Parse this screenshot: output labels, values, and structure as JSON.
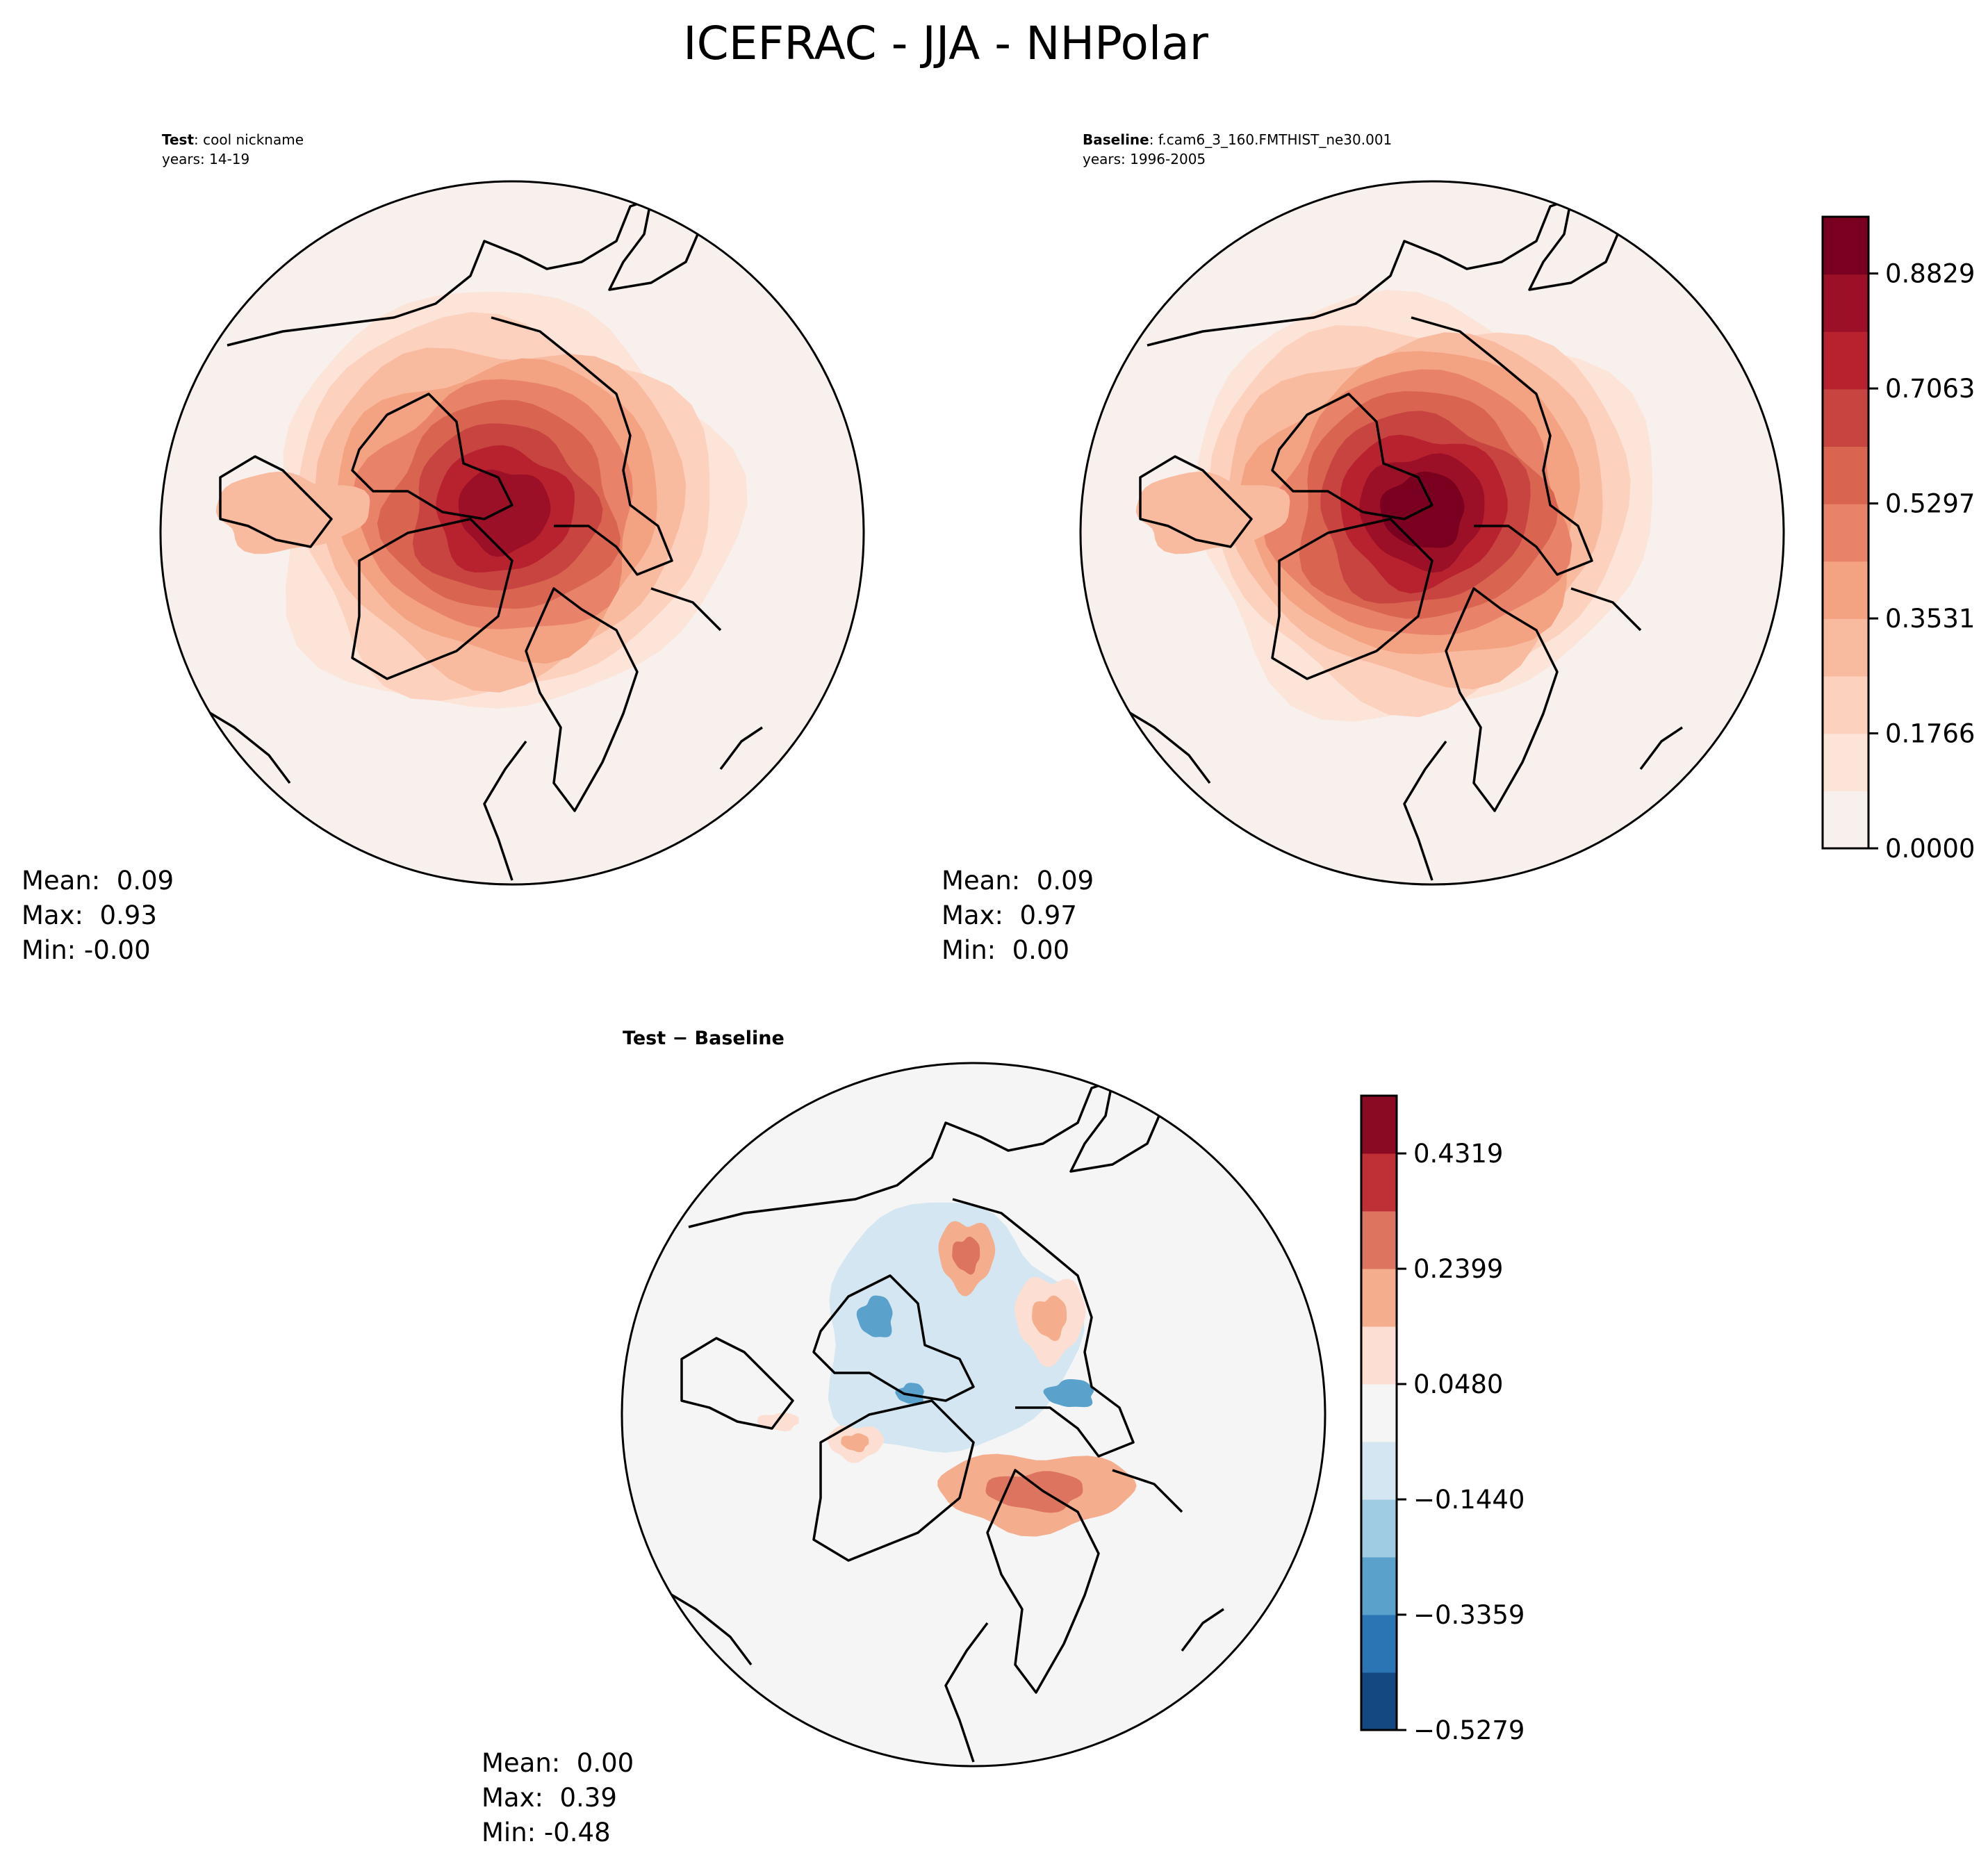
{
  "chart_data": [
    {
      "type": "heatmap",
      "projection": "north-polar-stereographic",
      "title": "ICEFRAC - JJA - NHPolar",
      "panels": [
        {
          "id": "test",
          "label_bold": "Test",
          "label_rest": ": cool nickname",
          "years": "years: 14-19",
          "stats": [
            "Mean:  0.09",
            "Max:  0.93",
            "Min: -0.00"
          ],
          "mean": 0.09,
          "max": 0.93,
          "min": -0.0
        },
        {
          "id": "baseline",
          "label_bold": "Baseline",
          "label_rest": ": f.cam6_3_160.FMTHIST_ne30.001",
          "years": "years: 1996-2005",
          "stats": [
            "Mean:  0.09",
            "Max:  0.97",
            "Min:  0.00"
          ],
          "mean": 0.09,
          "max": 0.97,
          "min": 0.0
        },
        {
          "id": "diff",
          "label_bold": "Test − Baseline",
          "label_rest": "",
          "years": "",
          "stats": [
            "Mean:  0.00",
            "Max:  0.39",
            "Min: -0.48"
          ],
          "mean": 0.0,
          "max": 0.39,
          "min": -0.48
        }
      ],
      "colorbars": [
        {
          "id": "main",
          "colormap": "Reds",
          "range": [
            0.0,
            0.97
          ],
          "ticks": [
            "0.0000",
            "0.1766",
            "0.3531",
            "0.5297",
            "0.7063",
            "0.8829"
          ],
          "tick_values": [
            0.0,
            0.1766,
            0.3531,
            0.5297,
            0.7063,
            0.8829
          ],
          "colors": [
            "#f7f0ed",
            "#fde4d8",
            "#fcd2bf",
            "#f9bba0",
            "#f3a381",
            "#e8836a",
            "#d96551",
            "#c84440",
            "#b8222f",
            "#9b1027",
            "#7a0020"
          ]
        },
        {
          "id": "diff",
          "colormap": "RdBu_r",
          "range": [
            -0.5279,
            0.528
          ],
          "ticks": [
            "−0.5279",
            "−0.3359",
            "−0.1440",
            "0.0480",
            "0.2399",
            "0.4319"
          ],
          "tick_values": [
            -0.5279,
            -0.3359,
            -0.144,
            0.048,
            0.2399,
            0.4319
          ],
          "colors": [
            "#134880",
            "#2c75b4",
            "#5aa1cb",
            "#9fcce2",
            "#d3e6f1",
            "#f5f5f5",
            "#fcdfd2",
            "#f4ae8e",
            "#dd7460",
            "#be2f36",
            "#8a0a24"
          ]
        }
      ]
    }
  ]
}
